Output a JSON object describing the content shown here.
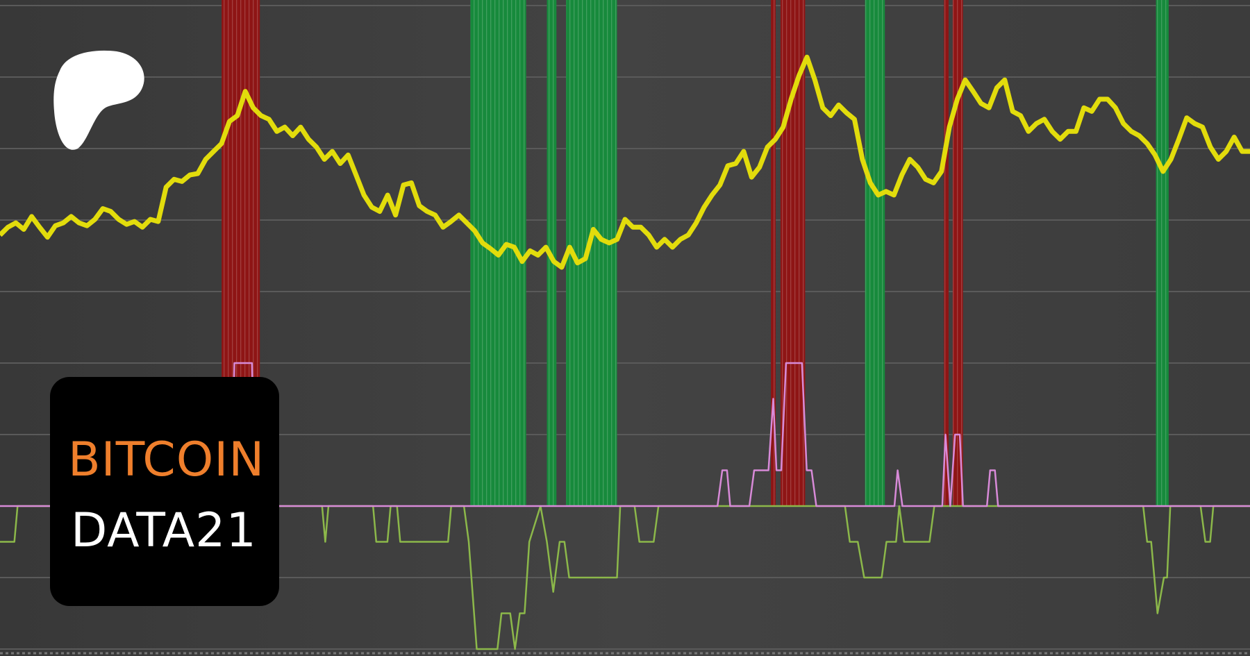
{
  "brand": {
    "logo": "patreon-logo",
    "line1": "BITCOIN",
    "line2": "DATA21",
    "line1_color": "#ef7f2c",
    "line2_color": "#ffffff"
  },
  "chart_data": {
    "type": "line",
    "title": "",
    "xlabel": "",
    "ylabel": "",
    "grid": true,
    "xlim": [
      0,
      156
    ],
    "ylim": [
      -2.1,
      7.1
    ],
    "colors": {
      "price": "#e2dc0c",
      "top_indicator": "#d88ad8",
      "bottom_indicator": "#8cb84a",
      "sell_band": "#8e1515",
      "buy_band": "#178a3c",
      "grid": "#5a5a5a"
    },
    "price": [
      3.79,
      3.9,
      3.96,
      3.87,
      4.05,
      3.9,
      3.76,
      3.92,
      3.96,
      4.05,
      3.96,
      3.92,
      4.01,
      4.16,
      4.12,
      4.01,
      3.94,
      3.98,
      3.9,
      4.01,
      3.98,
      4.46,
      4.57,
      4.54,
      4.63,
      4.65,
      4.85,
      4.96,
      5.07,
      5.38,
      5.46,
      5.8,
      5.57,
      5.46,
      5.41,
      5.24,
      5.3,
      5.18,
      5.3,
      5.13,
      5.02,
      4.85,
      4.96,
      4.79,
      4.91,
      4.63,
      4.35,
      4.18,
      4.12,
      4.35,
      4.07,
      4.49,
      4.52,
      4.2,
      4.12,
      4.07,
      3.9,
      3.98,
      4.07,
      3.96,
      3.85,
      3.68,
      3.6,
      3.51,
      3.66,
      3.62,
      3.42,
      3.57,
      3.51,
      3.62,
      3.42,
      3.34,
      3.62,
      3.4,
      3.46,
      3.87,
      3.73,
      3.68,
      3.73,
      4.01,
      3.9,
      3.9,
      3.79,
      3.62,
      3.73,
      3.62,
      3.73,
      3.79,
      3.96,
      4.18,
      4.35,
      4.49,
      4.76,
      4.79,
      4.96,
      4.6,
      4.74,
      5.02,
      5.13,
      5.3,
      5.69,
      6.02,
      6.28,
      5.96,
      5.57,
      5.46,
      5.61,
      5.5,
      5.41,
      4.85,
      4.52,
      4.35,
      4.4,
      4.35,
      4.63,
      4.85,
      4.74,
      4.57,
      4.52,
      4.68,
      5.3,
      5.69,
      5.96,
      5.8,
      5.63,
      5.57,
      5.85,
      5.96,
      5.52,
      5.46,
      5.24,
      5.35,
      5.41,
      5.24,
      5.13,
      5.24,
      5.24,
      5.57,
      5.52,
      5.69,
      5.69,
      5.57,
      5.35,
      5.24,
      5.18,
      5.07,
      4.91,
      4.68,
      4.85,
      5.13,
      5.43,
      5.35,
      5.3,
      5.02,
      4.85,
      4.96,
      5.16,
      4.96,
      4.96
    ],
    "top_indicator": [
      [
        0,
        0
      ],
      [
        29,
        0
      ],
      [
        29.4,
        2
      ],
      [
        31.6,
        2
      ],
      [
        32,
        0
      ],
      [
        90,
        0
      ],
      [
        90.6,
        0.5
      ],
      [
        91.2,
        0.5
      ],
      [
        91.6,
        0
      ],
      [
        94,
        0
      ],
      [
        94.6,
        0.5
      ],
      [
        96.4,
        0.5
      ],
      [
        97,
        1.5
      ],
      [
        97.4,
        0.5
      ],
      [
        98,
        0.5
      ],
      [
        98.6,
        2
      ],
      [
        100.6,
        2
      ],
      [
        101.2,
        0.5
      ],
      [
        101.8,
        0.5
      ],
      [
        102.4,
        0
      ],
      [
        112.2,
        0
      ],
      [
        112.6,
        0.5
      ],
      [
        113.2,
        0
      ],
      [
        118.2,
        0
      ],
      [
        118.6,
        1
      ],
      [
        119.2,
        0
      ],
      [
        119.8,
        1
      ],
      [
        120.4,
        1
      ],
      [
        120.8,
        0
      ],
      [
        123.8,
        0
      ],
      [
        124.2,
        0.5
      ],
      [
        124.8,
        0.5
      ],
      [
        125.2,
        0
      ],
      [
        156.8,
        0
      ]
    ],
    "bottom_indicator": [
      [
        0,
        -0.5
      ],
      [
        1.8,
        -0.5
      ],
      [
        2.2,
        0
      ],
      [
        40.4,
        0
      ],
      [
        40.8,
        -0.5
      ],
      [
        41.2,
        0
      ],
      [
        46.8,
        0
      ],
      [
        47.2,
        -0.5
      ],
      [
        48.6,
        -0.5
      ],
      [
        49,
        0
      ],
      [
        49.8,
        0
      ],
      [
        50.2,
        -0.5
      ],
      [
        56.2,
        -0.5
      ],
      [
        56.6,
        0
      ],
      [
        58.2,
        0
      ],
      [
        58.8,
        -0.5
      ],
      [
        59.8,
        -2
      ],
      [
        62.4,
        -2
      ],
      [
        62.9,
        -1.5
      ],
      [
        64,
        -1.5
      ],
      [
        64.6,
        -2
      ],
      [
        65.2,
        -1.5
      ],
      [
        65.8,
        -1.5
      ],
      [
        66.4,
        -0.5
      ],
      [
        67.8,
        0
      ],
      [
        68.6,
        -0.5
      ],
      [
        69.4,
        -1.2
      ],
      [
        70.2,
        -0.5
      ],
      [
        70.8,
        -0.5
      ],
      [
        71.4,
        -1
      ],
      [
        77.4,
        -1
      ],
      [
        77.8,
        0
      ],
      [
        79.6,
        0
      ],
      [
        80.2,
        -0.5
      ],
      [
        82,
        -0.5
      ],
      [
        82.6,
        0
      ],
      [
        106,
        0
      ],
      [
        106.6,
        -0.5
      ],
      [
        107.6,
        -0.5
      ],
      [
        108.4,
        -1
      ],
      [
        110.6,
        -1
      ],
      [
        111.2,
        -0.5
      ],
      [
        112.4,
        -0.5
      ],
      [
        112.8,
        0
      ],
      [
        113.4,
        -0.5
      ],
      [
        116.6,
        -0.5
      ],
      [
        117.2,
        0
      ],
      [
        143.4,
        0
      ],
      [
        143.9,
        -0.5
      ],
      [
        144.4,
        -0.5
      ],
      [
        145.2,
        -1.5
      ],
      [
        146,
        -1
      ],
      [
        146.4,
        -1
      ],
      [
        146.8,
        0
      ],
      [
        150.6,
        0
      ],
      [
        151.2,
        -0.5
      ],
      [
        151.8,
        -0.5
      ],
      [
        152.2,
        0
      ],
      [
        156.8,
        0
      ]
    ],
    "sell_bands": [
      [
        27.8,
        32.6
      ],
      [
        96.7,
        97.3
      ],
      [
        97.9,
        101.0
      ],
      [
        118.4,
        119.0
      ],
      [
        119.5,
        120.8
      ]
    ],
    "buy_bands": [
      [
        59.0,
        66.0
      ],
      [
        68.6,
        69.8
      ],
      [
        71.0,
        77.4
      ],
      [
        108.5,
        111.0
      ],
      [
        145.0,
        146.6
      ]
    ]
  }
}
